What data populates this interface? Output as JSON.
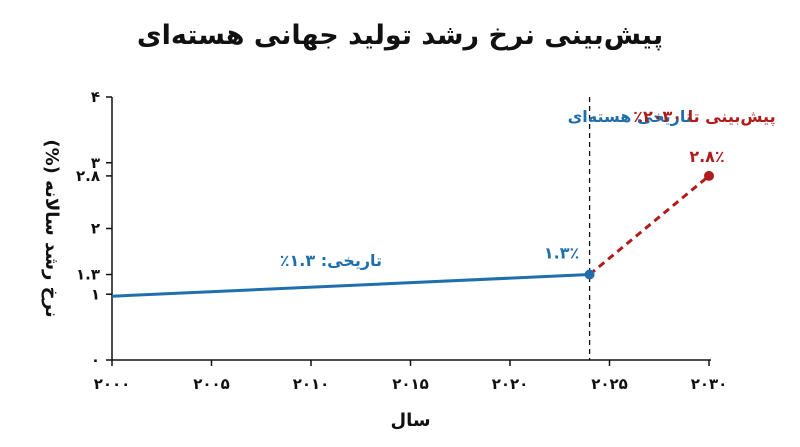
{
  "chart_data": {
    "type": "line",
    "title": "پیش‌بینی نرخ رشد تولید جهانی هسته‌ای",
    "xlabel": "سال",
    "ylabel": "نرخ رشد سالانه (%)",
    "xlim": [
      2000,
      2030
    ],
    "ylim": [
      0,
      4
    ],
    "x_ticks": [
      {
        "value": 2000,
        "label": "۲۰۰۰"
      },
      {
        "value": 2005,
        "label": "۲۰۰۵"
      },
      {
        "value": 2010,
        "label": "۲۰۱۰"
      },
      {
        "value": 2015,
        "label": "۲۰۱۵"
      },
      {
        "value": 2020,
        "label": "۲۰۲۰"
      },
      {
        "value": 2025,
        "label": "۲۰۲۵"
      },
      {
        "value": 2030,
        "label": "۲۰۳۰"
      }
    ],
    "y_ticks": [
      {
        "value": 0,
        "label": "۰"
      },
      {
        "value": 1,
        "label": "۱"
      },
      {
        "value": 1.3,
        "label": "۱.۳"
      },
      {
        "value": 2,
        "label": "۲"
      },
      {
        "value": 2.8,
        "label": "۲.۸"
      },
      {
        "value": 3,
        "label": "۳"
      },
      {
        "value": 4,
        "label": "۴"
      }
    ],
    "series": [
      {
        "color": "#1f6fad",
        "style": "solid",
        "points": [
          {
            "x": 2000,
            "y": 0.97
          },
          {
            "x": 2024,
            "y": 1.3
          }
        ]
      },
      {
        "color": "#b01c1c",
        "style": "dashed",
        "points": [
          {
            "x": 2024,
            "y": 1.3
          },
          {
            "x": 2030,
            "y": 2.8
          }
        ]
      }
    ],
    "divider_x": 2024,
    "annotations": {
      "historical_region": "تاریخی هسته‌ای",
      "forecast_region": "پیش‌بینی تا ۲۰۳۰٪",
      "historical_rate": "تاریخی: ۱.۳٪",
      "point_2024": "۱.۳٪",
      "point_2030": "۲.۸٪"
    },
    "grid": false
  }
}
